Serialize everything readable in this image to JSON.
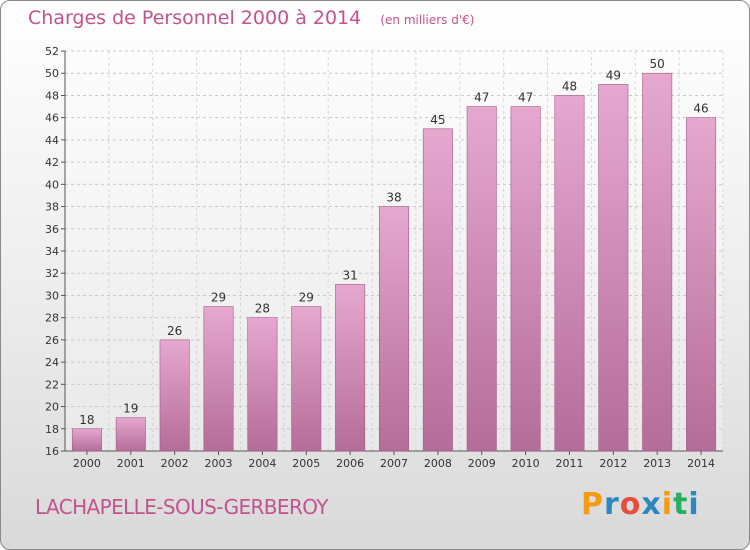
{
  "header": {
    "title": "Charges de Personnel 2000 à 2014",
    "subtitle": "(en milliers d'€)"
  },
  "footer": {
    "commune": "LACHAPELLE-SOUS-GERBEROY",
    "logo_text": "Proxiti",
    "logo_colors": [
      "#f39c12",
      "#2e86c1",
      "#e74c3c",
      "#2e86c1",
      "#f39c12",
      "#27ae60",
      "#2e86c1"
    ]
  },
  "chart_data": {
    "type": "bar",
    "categories": [
      "2000",
      "2001",
      "2002",
      "2003",
      "2004",
      "2005",
      "2006",
      "2007",
      "2008",
      "2009",
      "2010",
      "2011",
      "2012",
      "2013",
      "2014"
    ],
    "values": [
      18,
      19,
      26,
      29,
      28,
      29,
      31,
      38,
      45,
      47,
      47,
      48,
      49,
      50,
      46
    ],
    "ylim": [
      16,
      52
    ],
    "yticks": [
      16,
      18,
      20,
      22,
      24,
      26,
      28,
      30,
      32,
      34,
      36,
      38,
      40,
      42,
      44,
      46,
      48,
      50,
      52
    ],
    "grid": true,
    "colors": {
      "bar_top": "#e6a8cf",
      "bar_bottom": "#b46d98",
      "bar_edge": "#a45a88",
      "label": "#333333",
      "axis": "#555555"
    }
  }
}
